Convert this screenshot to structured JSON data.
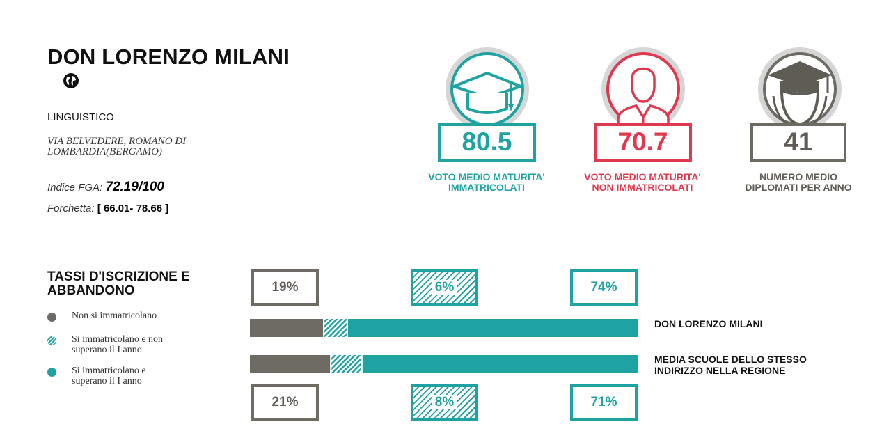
{
  "school": {
    "name": "DON LORENZO MILANI",
    "type": "LINGUISTICO",
    "address": "VIA BELVEDERE, ROMANO DI LOMBARDIA(BERGAMO)",
    "index_label": "Indice FGA:",
    "index_value": "72.19/100",
    "fork_label": "Forchetta:",
    "fork_value": "[ 66.01- 78.66 ]"
  },
  "icons": {
    "globe": "globe-icon"
  },
  "stats": [
    {
      "value": "80.5",
      "caption_line1": "VOTO MEDIO MATURITA'",
      "caption_line2": "IMMATRICOLATI",
      "color": "#1fa3a2",
      "icon": "graduation-cap-icon"
    },
    {
      "value": "70.7",
      "caption_line1": "VOTO MEDIO MATURITA'",
      "caption_line2": "NON IMMATRICOLATI",
      "color": "#e0384e",
      "icon": "person-icon"
    },
    {
      "value": "41",
      "caption_line1": "NUMERO MEDIO",
      "caption_line2": "DIPLOMATI PER ANNO",
      "color": "#6e6b64",
      "icon": "graduate-icon"
    }
  ],
  "section": {
    "title_line1": "TASSI D'ISCRIZIONE E",
    "title_line2": "ABBANDONO"
  },
  "legend": [
    {
      "line1": "Non si immatricolano",
      "line2": "",
      "color": "#6e6b64",
      "style": "solid"
    },
    {
      "line1": "Si immatricolano e non",
      "line2": "superano il I anno",
      "color": "#1fa3a2",
      "style": "hatched"
    },
    {
      "line1": "Si immatricolano e",
      "line2": "superano il I anno",
      "color": "#1fa3a2",
      "style": "solid"
    }
  ],
  "chart_data": {
    "type": "bar",
    "orientation": "horizontal",
    "stacked": true,
    "unit": "%",
    "categories": [
      "DON LORENZO MILANI",
      "MEDIA SCUOLE DELLO STESSO INDIRIZZO NELLA REGIONE"
    ],
    "category_lines": [
      [
        "DON LORENZO MILANI"
      ],
      [
        "MEDIA SCUOLE DELLO STESSO",
        "INDIRIZZO NELLA REGIONE"
      ]
    ],
    "series": [
      {
        "name": "Non si immatricolano",
        "values": [
          19,
          21
        ],
        "labels": [
          "19%",
          "21%"
        ],
        "color": "#6e6b64",
        "style": "solid"
      },
      {
        "name": "Si immatricolano e non superano il I anno",
        "values": [
          6,
          8
        ],
        "labels": [
          "6%",
          "8%"
        ],
        "color": "#1fa3a2",
        "style": "hatched"
      },
      {
        "name": "Si immatricolano e superano il I anno",
        "values": [
          74,
          71
        ],
        "labels": [
          "74%",
          "71%"
        ],
        "color": "#1fa3a2",
        "style": "solid"
      }
    ],
    "xlim": [
      0,
      100
    ],
    "grid": false,
    "legend": "left"
  }
}
